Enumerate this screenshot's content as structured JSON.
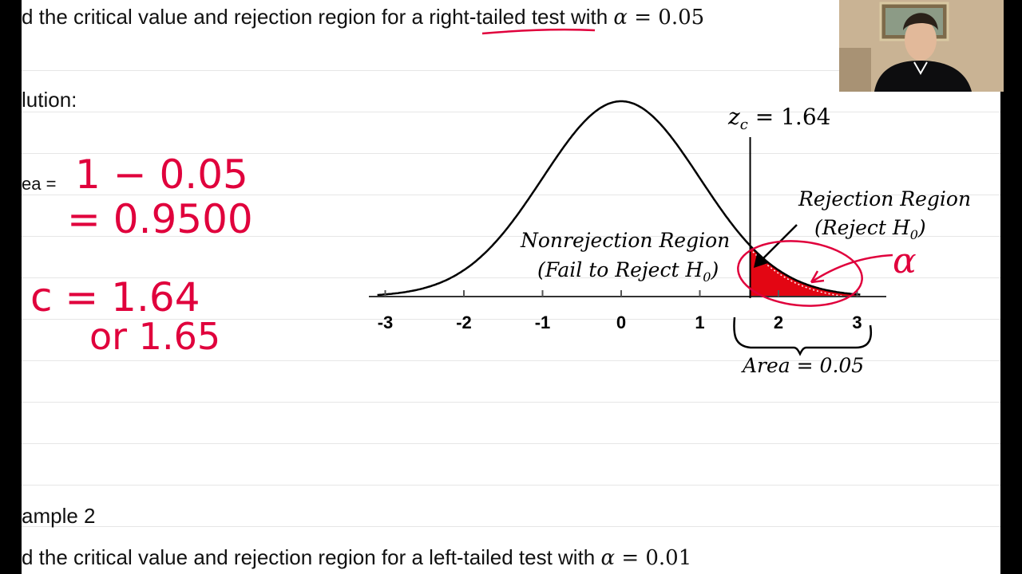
{
  "header": {
    "prompt_prefix": "d the critical value and rejection region for a ",
    "prompt_highlight": "right-tailed",
    "prompt_suffix": " test with ",
    "alpha_symbol": "α",
    "alpha_eq": " = 0.05"
  },
  "solution": {
    "label": "lution:",
    "area_label": "ea ="
  },
  "chart": {
    "zc_label": "z",
    "zc_sub": "c",
    "zc_value": " = 1.64",
    "rejection_title": "Rejection Region",
    "rejection_sub_pre": "(Reject H",
    "rejection_sub_idx": "0",
    "rejection_sub_post": ")",
    "nonrejection_title": "Nonrejection Region",
    "nonrejection_sub_pre": "(Fail to Reject H",
    "nonrejection_sub_idx": "0",
    "nonrejection_sub_post": ")",
    "area_text": "Area = 0.05",
    "ticks": [
      "-3",
      "-2",
      "-1",
      "0",
      "1",
      "2",
      "3"
    ],
    "critical_z": 1.64,
    "shade_color": "#e30613"
  },
  "handwriting": {
    "line1": "1 − 0.05",
    "line2": "= 0.9500",
    "line3": "c = 1.64",
    "line4": "or 1.65",
    "alpha_glyph": "α",
    "color": "#e0003c"
  },
  "example2": {
    "title": "ample 2",
    "prompt_prefix": "d the critical value and rejection region for a left-tailed test with ",
    "alpha_symbol": "α",
    "alpha_eq": " = 0.01"
  },
  "webcam": {
    "icon": "presenter-video"
  }
}
